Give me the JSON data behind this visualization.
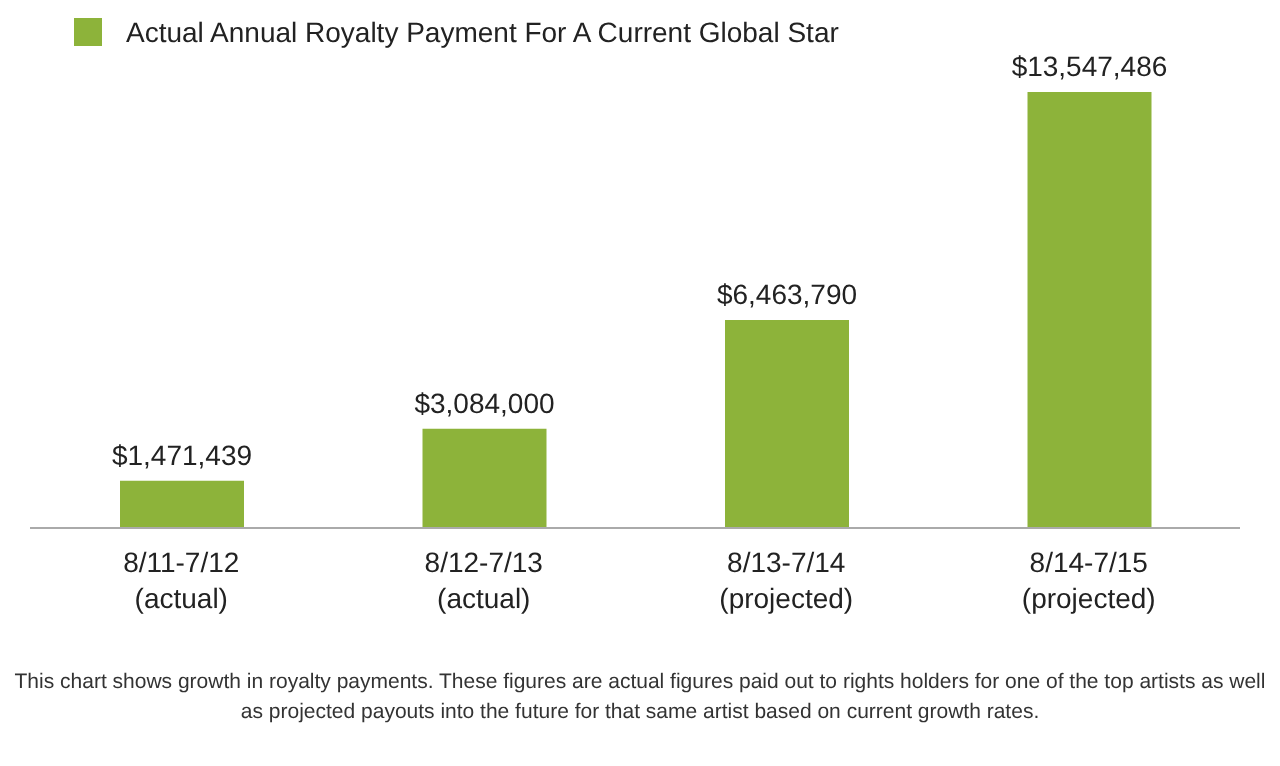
{
  "chart_data": {
    "type": "bar",
    "categories": [
      "8/11-7/12 (actual)",
      "8/12-7/13 (actual)",
      "8/13-7/14 (projected)",
      "8/14-7/15 (projected)"
    ],
    "series": [
      {
        "name": "Actual Annual Royalty Payment For A Current Global Star",
        "color": "#8db33a",
        "values": [
          1471439,
          3084000,
          6463790,
          13547486
        ],
        "value_labels": [
          "$1,471,439",
          "$3,084,000",
          "$6,463,790",
          "$13,547,486"
        ]
      }
    ],
    "legend": "top left",
    "annotations": [
      "This chart shows growth in royalty payments. These figures are actual figures paid out to rights holders for one of the top artists as well as projected payouts into the future for that same artist based on current growth rates."
    ]
  }
}
